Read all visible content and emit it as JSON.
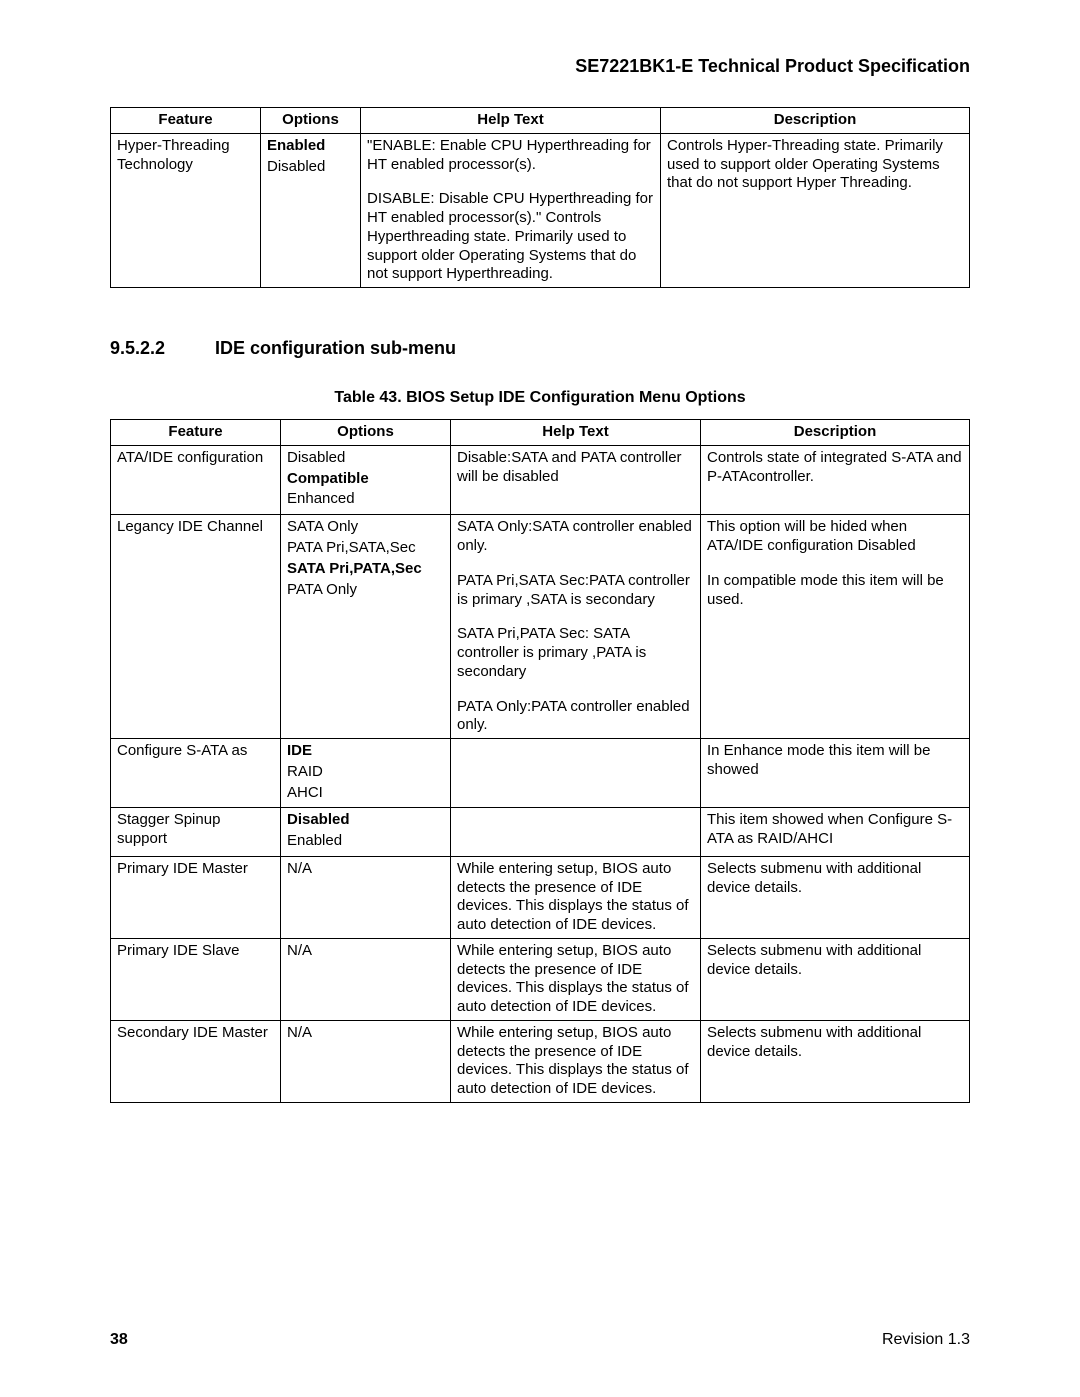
{
  "header": {
    "prefix": "SE7221BK1",
    "suffix": "-E Technical Product Specification"
  },
  "table1": {
    "headers": [
      "Feature",
      "Options",
      "Help Text",
      "Description"
    ],
    "row": {
      "feature": "Hyper-Threading Technology",
      "options": [
        {
          "text": "Enabled",
          "bold": true
        },
        {
          "text": "Disabled",
          "bold": false
        }
      ],
      "help_p1": "\"ENABLE:  Enable CPU Hyperthreading for HT enabled processor(s).",
      "help_p2": "DISABLE:  Disable CPU Hyperthreading for HT enabled processor(s).\"       Controls Hyperthreading state.  Primarily used to support older Operating Systems that do not support Hyperthreading.",
      "description": "Controls Hyper-Threading state.  Primarily used to support older Operating Systems that do not support Hyper Threading."
    }
  },
  "section": {
    "number": "9.5.2.2",
    "title": "IDE configuration sub-menu"
  },
  "table2": {
    "caption": "Table 43. BIOS Setup IDE Configuration Menu Options",
    "headers": [
      "Feature",
      "Options",
      "Help Text",
      "Description"
    ],
    "rows": [
      {
        "feature": "ATA/IDE configuration",
        "options": [
          {
            "text": "Disabled",
            "bold": false
          },
          {
            "text": "Compatible",
            "bold": true
          },
          {
            "text": "Enhanced",
            "bold": false
          }
        ],
        "help": [
          "Disable:SATA and PATA controller will be disabled"
        ],
        "description": [
          "Controls state of integrated S-ATA and P-ATAcontroller."
        ],
        "tall": true
      },
      {
        "feature": "Legancy IDE Channel",
        "options": [
          {
            "text": "SATA Only",
            "bold": false
          },
          {
            "text": "PATA Pri,SATA,Sec",
            "bold": false
          },
          {
            "text": "SATA Pri,PATA,Sec",
            "bold": true
          },
          {
            "text": "PATA Only",
            "bold": false
          }
        ],
        "help": [
          "SATA Only:SATA controller enabled only.",
          "PATA Pri,SATA Sec:PATA controller is primary ,SATA is secondary",
          "SATA Pri,PATA Sec: SATA controller is primary ,PATA is secondary",
          "PATA Only:PATA controller enabled only."
        ],
        "description": [
          "This option will be hided when ATA/IDE configuration Disabled",
          "In compatible mode this item will be used."
        ]
      },
      {
        "feature": "Configure S-ATA as",
        "options": [
          {
            "text": "IDE",
            "bold": true
          },
          {
            "text": "RAID",
            "bold": false
          },
          {
            "text": "AHCI",
            "bold": false
          }
        ],
        "help": [],
        "description": [
          "In Enhance mode this item will be showed"
        ]
      },
      {
        "feature": "Stagger Spinup support",
        "options": [
          {
            "text": "Disabled",
            "bold": true
          },
          {
            "text": "Enabled",
            "bold": false
          }
        ],
        "help": [],
        "description": [
          "This item showed when Configure S-ATA as RAID/AHCI"
        ]
      },
      {
        "feature": "Primary IDE Master",
        "options": [
          {
            "text": "N/A",
            "bold": false
          }
        ],
        "help": [
          "While entering setup, BIOS auto detects the presence of IDE devices. This displays the status of auto detection of IDE devices."
        ],
        "description": [
          "Selects submenu with additional device details."
        ]
      },
      {
        "feature": "Primary IDE Slave",
        "options": [
          {
            "text": "N/A",
            "bold": false
          }
        ],
        "help": [
          "While entering setup, BIOS auto detects the presence of IDE devices. This displays the status of auto detection of IDE devices."
        ],
        "description": [
          "Selects submenu with additional device details."
        ]
      },
      {
        "feature": "Secondary IDE Master",
        "options": [
          {
            "text": "N/A",
            "bold": false
          }
        ],
        "help": [
          "While entering setup, BIOS auto detects the presence of IDE devices. This displays the status of auto detection of IDE devices."
        ],
        "description": [
          "Selects submenu with additional device details."
        ]
      }
    ]
  },
  "footer": {
    "page": "38",
    "revision": "Revision 1.3"
  }
}
